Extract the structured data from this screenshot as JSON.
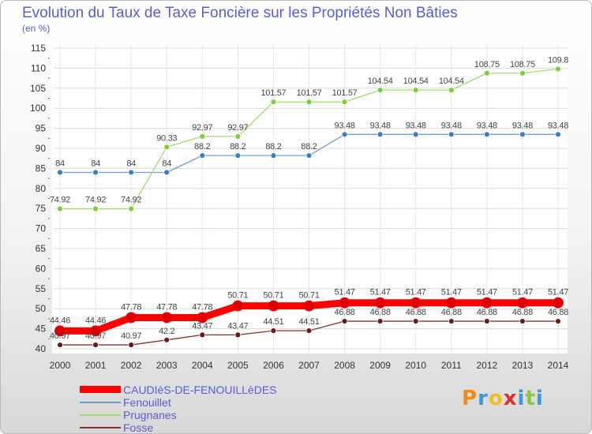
{
  "chart_data": {
    "type": "line",
    "title": "Evolution du Taux de Taxe Foncière sur les Propriétés Non Bâties",
    "ylabel": "(en %)",
    "xlabel": "",
    "ylim": [
      40,
      115
    ],
    "yticks": [
      40,
      45,
      50,
      55,
      60,
      65,
      70,
      75,
      80,
      85,
      90,
      95,
      100,
      105,
      110,
      115
    ],
    "categories": [
      "2000",
      "2001",
      "2002",
      "2003",
      "2004",
      "2005",
      "2006",
      "2007",
      "2008",
      "2009",
      "2010",
      "2011",
      "2012",
      "2013",
      "2014"
    ],
    "series": [
      {
        "name": "CAUDIèS-DE-FENOUILLèDES",
        "color": "#ff0000",
        "marker": "#dd0000",
        "values": [
          44.46,
          44.46,
          47.78,
          47.78,
          47.78,
          50.71,
          50.71,
          50.71,
          51.47,
          51.47,
          51.47,
          51.47,
          51.47,
          51.47,
          51.47
        ],
        "labels": [
          "44.46",
          "44.46",
          "47.78",
          "47.78",
          "47.78",
          "50.71",
          "50.71",
          "50.71",
          "51.47",
          "51.47",
          "51.47",
          "51.47",
          "51.47",
          "51.47",
          "51.47"
        ]
      },
      {
        "name": "Fenouillet",
        "color": "#6f9fd0",
        "marker": "#3b7fc4",
        "values": [
          84,
          84,
          84,
          84,
          88.2,
          88.2,
          88.2,
          88.2,
          93.48,
          93.48,
          93.48,
          93.48,
          93.48,
          93.48,
          93.48
        ],
        "labels": [
          "84",
          "84",
          "84",
          "84",
          "88.2",
          "88.2",
          "88.2",
          "88.2",
          "93.48",
          "93.48",
          "93.48",
          "93.48",
          "93.48",
          "93.48",
          "93.48"
        ]
      },
      {
        "name": "Prugnanes",
        "color": "#9ae06a",
        "marker": "#7cce3c",
        "values": [
          74.92,
          74.92,
          74.92,
          90.33,
          92.97,
          92.97,
          101.57,
          101.57,
          101.57,
          104.54,
          104.54,
          104.54,
          108.75,
          108.75,
          109.8
        ],
        "labels": [
          "74.92",
          "74.92",
          "74.92",
          "90.33",
          "92.97",
          "92.97",
          "101.57",
          "101.57",
          "101.57",
          "104.54",
          "104.54",
          "104.54",
          "108.75",
          "108.75",
          "109.8"
        ]
      },
      {
        "name": "Fosse",
        "color": "#8a3030",
        "marker": "#6b1a1a",
        "values": [
          40.97,
          40.97,
          40.97,
          42.2,
          43.47,
          43.47,
          44.51,
          44.51,
          46.88,
          46.88,
          46.88,
          46.88,
          46.88,
          46.88,
          46.88
        ],
        "labels": [
          "40.97",
          "40.97",
          "40.97",
          "42.2",
          "43.47",
          "43.47",
          "44.51",
          "44.51",
          "46.88",
          "46.88",
          "46.88",
          "46.88",
          "46.88",
          "46.88",
          "46.88"
        ]
      }
    ]
  },
  "logo": {
    "letters": [
      "P",
      "r",
      "o",
      "x",
      "i",
      "t",
      "i"
    ],
    "colors": [
      "#f08a1a",
      "#3a9ad9",
      "#f0c01a",
      "#d9302a",
      "#3a9ad9",
      "#8cc63f",
      "#3a9ad9"
    ]
  }
}
